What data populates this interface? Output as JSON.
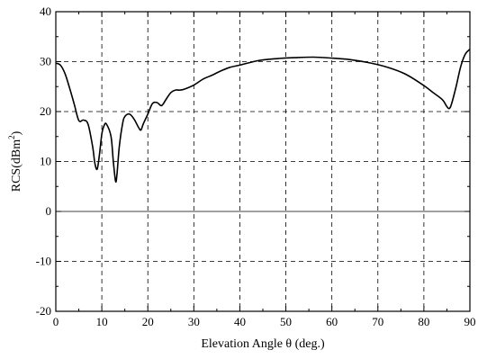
{
  "chart_data": {
    "type": "line",
    "xlabel": "Elevation Angle θ (deg.)",
    "ylabel_main": "RCS(dBm",
    "ylabel_sup": "2",
    "ylabel_close": ")",
    "xlim": [
      0,
      90
    ],
    "ylim": [
      -20,
      40
    ],
    "x_ticks": [
      0,
      10,
      20,
      30,
      40,
      50,
      60,
      70,
      80,
      90
    ],
    "x_tick_labels": [
      "0",
      "10",
      "20",
      "30",
      "40",
      "50",
      "60",
      "70",
      "80",
      "90"
    ],
    "y_ticks": [
      -20,
      -10,
      0,
      10,
      20,
      30,
      40
    ],
    "y_tick_labels": [
      "-20",
      "-10",
      "0",
      "10",
      "20",
      "30",
      "40"
    ],
    "grid": true,
    "series": [
      {
        "x": [
          0,
          1,
          2,
          3,
          4,
          5,
          6,
          7,
          8,
          8.5,
          9,
          9.5,
          10,
          10.5,
          11,
          12,
          12.5,
          13,
          13.3,
          13.8,
          14.5,
          15,
          16,
          17,
          18,
          18.5,
          19,
          20,
          21,
          22,
          23,
          24,
          25,
          26,
          27,
          28,
          30,
          32,
          34,
          36,
          38,
          40,
          44,
          48,
          52,
          56,
          60,
          64,
          68,
          72,
          76,
          80,
          82,
          84,
          85,
          85.5,
          86,
          87,
          88,
          89,
          90
        ],
        "y": [
          29.7,
          29.3,
          27.6,
          24.7,
          21.5,
          18.2,
          18.3,
          17.5,
          13.0,
          9.6,
          8.5,
          11.5,
          15.5,
          17.2,
          17.5,
          15.0,
          10.0,
          6.0,
          7.5,
          13.0,
          17.5,
          19.0,
          19.5,
          18.5,
          16.8,
          16.3,
          17.5,
          19.5,
          21.6,
          21.8,
          21.2,
          22.5,
          23.8,
          24.3,
          24.3,
          24.5,
          25.3,
          26.5,
          27.3,
          28.2,
          28.9,
          29.3,
          30.2,
          30.6,
          30.8,
          30.9,
          30.7,
          30.4,
          29.8,
          28.9,
          27.5,
          25.2,
          23.8,
          22.4,
          21.0,
          20.6,
          21.5,
          25.0,
          29.0,
          31.5,
          32.5
        ]
      }
    ]
  }
}
